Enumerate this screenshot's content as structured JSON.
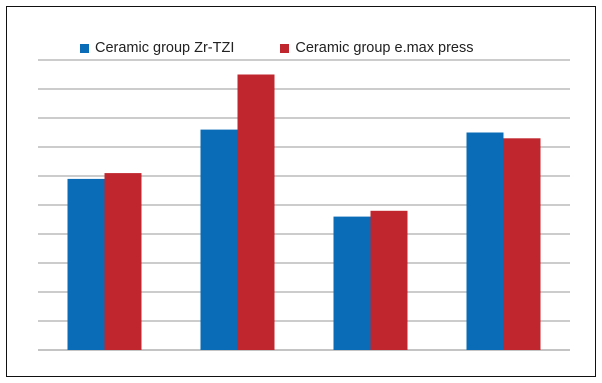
{
  "chart_data": {
    "type": "bar",
    "title": "",
    "xlabel": "",
    "ylabel": "",
    "categories": [
      "",
      "",
      "",
      ""
    ],
    "ylim": [
      0,
      10
    ],
    "grid": true,
    "legend_position": "top",
    "series": [
      {
        "name": "Ceramic group Zr-TZI",
        "color": "#0a6bb6",
        "values": [
          5.9,
          7.6,
          4.6,
          7.5
        ]
      },
      {
        "name": "Ceramic group e.max press",
        "color": "#c0262d",
        "values": [
          6.1,
          9.5,
          4.8,
          7.3
        ]
      }
    ]
  }
}
